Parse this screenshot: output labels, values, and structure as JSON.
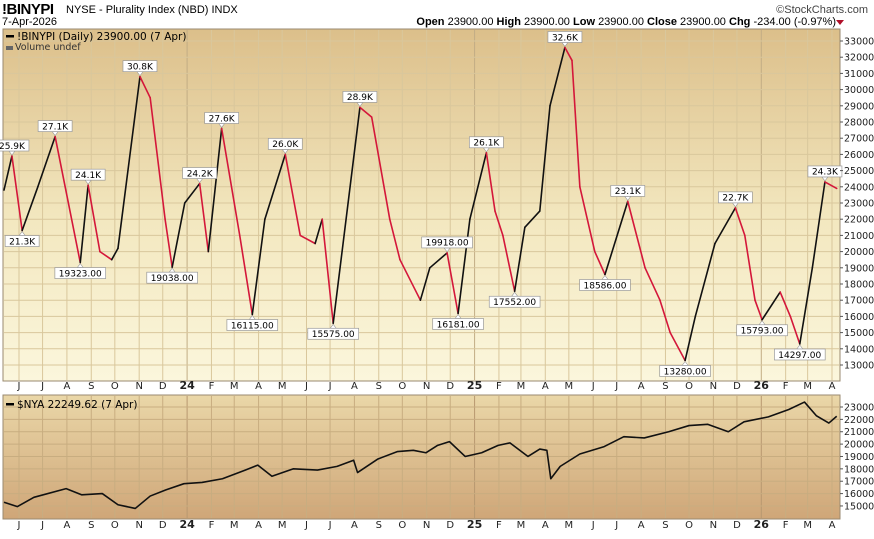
{
  "header": {
    "symbol": "!BINYPI",
    "description": "NYSE - Plurality Index (NBD)  INDX",
    "date": "7-Apr-2026",
    "credit": "©StockCharts.com",
    "open_label": "Open",
    "open": "23900.00",
    "high_label": "High",
    "high": "23900.00",
    "low_label": "Low",
    "low": "23900.00",
    "close_label": "Close",
    "close": "23900.00",
    "chg_label": "Chg",
    "chg": "-234.00 (-0.97%)",
    "chg_direction": "down"
  },
  "colors": {
    "up": "#111111",
    "down": "#d4173a",
    "panel_top": "#dcbf8a",
    "panel_bottom": "#fbf6dc",
    "grid": "#d9c79c"
  },
  "chart_data": [
    {
      "type": "line",
      "legend": "!BINYPI (Daily) 23900.00 (7 Apr)",
      "sublegend": "Volume undef",
      "ylim": [
        12500,
        33500
      ],
      "yticks": [
        13000,
        14000,
        15000,
        16000,
        17000,
        18000,
        19000,
        20000,
        21000,
        22000,
        23000,
        24000,
        25000,
        26000,
        27000,
        28000,
        29000,
        30000,
        31000,
        32000,
        33000
      ],
      "grid": true,
      "color_rule": "black when rising, red when falling",
      "points": [
        [
          "2023-05-12",
          23800
        ],
        [
          "2023-05-23",
          25900
        ],
        [
          "2023-06-05",
          21300
        ],
        [
          "2023-06-25",
          24000
        ],
        [
          "2023-07-17",
          27100
        ],
        [
          "2023-08-18",
          19323
        ],
        [
          "2023-08-28",
          24100
        ],
        [
          "2023-09-12",
          20000
        ],
        [
          "2023-09-27",
          19500
        ],
        [
          "2023-10-05",
          20200
        ],
        [
          "2023-11-02",
          30800
        ],
        [
          "2023-11-15",
          29500
        ],
        [
          "2023-12-04",
          22000
        ],
        [
          "2023-12-13",
          19038
        ],
        [
          "2023-12-29",
          23000
        ],
        [
          "2024-01-17",
          24200
        ],
        [
          "2024-01-28",
          20000
        ],
        [
          "2024-02-14",
          27600
        ],
        [
          "2024-03-08",
          21000
        ],
        [
          "2024-03-24",
          16115
        ],
        [
          "2024-04-09",
          22000
        ],
        [
          "2024-05-05",
          26000
        ],
        [
          "2024-05-24",
          21000
        ],
        [
          "2024-06-12",
          20500
        ],
        [
          "2024-06-21",
          22000
        ],
        [
          "2024-07-05",
          15575
        ],
        [
          "2024-08-08",
          28900
        ],
        [
          "2024-08-23",
          28300
        ],
        [
          "2024-09-15",
          22000
        ],
        [
          "2024-09-28",
          19500
        ],
        [
          "2024-10-24",
          17000
        ],
        [
          "2024-11-05",
          19000
        ],
        [
          "2024-11-27",
          19918
        ],
        [
          "2024-12-11",
          16181
        ],
        [
          "2024-12-26",
          22000
        ],
        [
          "2025-01-16",
          26100
        ],
        [
          "2025-01-27",
          22500
        ],
        [
          "2025-02-06",
          21000
        ],
        [
          "2025-02-21",
          17552
        ],
        [
          "2025-03-06",
          21500
        ],
        [
          "2025-03-25",
          22500
        ],
        [
          "2025-04-07",
          29000
        ],
        [
          "2025-04-26",
          32600
        ],
        [
          "2025-05-05",
          31800
        ],
        [
          "2025-05-15",
          24000
        ],
        [
          "2025-06-03",
          20000
        ],
        [
          "2025-06-16",
          18586
        ],
        [
          "2025-07-15",
          23100
        ],
        [
          "2025-08-06",
          19000
        ],
        [
          "2025-08-25",
          17000
        ],
        [
          "2025-09-07",
          15000
        ],
        [
          "2025-09-26",
          13280
        ],
        [
          "2025-10-09",
          16000
        ],
        [
          "2025-11-03",
          20500
        ],
        [
          "2025-11-29",
          22700
        ],
        [
          "2025-12-11",
          21000
        ],
        [
          "2025-12-24",
          17000
        ],
        [
          "2026-01-02",
          15793
        ],
        [
          "2026-01-25",
          17500
        ],
        [
          "2026-02-07",
          16000
        ],
        [
          "2026-02-19",
          14297
        ],
        [
          "2026-03-07",
          19000
        ],
        [
          "2026-03-23",
          24300
        ],
        [
          "2026-04-07",
          23900
        ]
      ],
      "annotations": [
        {
          "date": "2023-05-23",
          "value": 25900,
          "text": "25.9K",
          "pos": "above"
        },
        {
          "date": "2023-06-05",
          "value": 21300,
          "text": "21.3K",
          "pos": "below"
        },
        {
          "date": "2023-07-17",
          "value": 27100,
          "text": "27.1K",
          "pos": "above"
        },
        {
          "date": "2023-08-18",
          "value": 19323,
          "text": "19323.00",
          "pos": "below"
        },
        {
          "date": "2023-08-28",
          "value": 24100,
          "text": "24.1K",
          "pos": "above"
        },
        {
          "date": "2023-11-02",
          "value": 30800,
          "text": "30.8K",
          "pos": "above"
        },
        {
          "date": "2023-12-13",
          "value": 19038,
          "text": "19038.00",
          "pos": "below"
        },
        {
          "date": "2024-01-17",
          "value": 24200,
          "text": "24.2K",
          "pos": "above"
        },
        {
          "date": "2024-02-14",
          "value": 27600,
          "text": "27.6K",
          "pos": "above"
        },
        {
          "date": "2024-03-24",
          "value": 16115,
          "text": "16115.00",
          "pos": "below"
        },
        {
          "date": "2024-05-05",
          "value": 26000,
          "text": "26.0K",
          "pos": "above"
        },
        {
          "date": "2024-07-05",
          "value": 15575,
          "text": "15575.00",
          "pos": "below"
        },
        {
          "date": "2024-08-08",
          "value": 28900,
          "text": "28.9K",
          "pos": "above"
        },
        {
          "date": "2024-11-27",
          "value": 19918,
          "text": "19918.00",
          "pos": "above"
        },
        {
          "date": "2024-12-11",
          "value": 16181,
          "text": "16181.00",
          "pos": "below"
        },
        {
          "date": "2025-01-16",
          "value": 26100,
          "text": "26.1K",
          "pos": "above"
        },
        {
          "date": "2025-02-21",
          "value": 17552,
          "text": "17552.00",
          "pos": "below"
        },
        {
          "date": "2025-04-26",
          "value": 32600,
          "text": "32.6K",
          "pos": "above"
        },
        {
          "date": "2025-06-16",
          "value": 18586,
          "text": "18586.00",
          "pos": "below"
        },
        {
          "date": "2025-07-15",
          "value": 23100,
          "text": "23.1K",
          "pos": "above"
        },
        {
          "date": "2025-09-26",
          "value": 13280,
          "text": "13280.00",
          "pos": "below"
        },
        {
          "date": "2025-11-29",
          "value": 22700,
          "text": "22.7K",
          "pos": "above"
        },
        {
          "date": "2026-01-02",
          "value": 15793,
          "text": "15793.00",
          "pos": "below"
        },
        {
          "date": "2026-02-19",
          "value": 14297,
          "text": "14297.00",
          "pos": "below"
        },
        {
          "date": "2026-03-23",
          "value": 24300,
          "text": "24.3K",
          "pos": "above"
        }
      ]
    },
    {
      "type": "line",
      "legend": "$NYA 22249.62 (7 Apr)",
      "ylim": [
        14300,
        23700
      ],
      "yticks": [
        15000,
        16000,
        17000,
        18000,
        19000,
        20000,
        21000,
        22000,
        23000
      ],
      "grid": true,
      "points": [
        [
          "2023-05-12",
          15300
        ],
        [
          "2023-05-30",
          14950
        ],
        [
          "2023-06-20",
          15700
        ],
        [
          "2023-07-31",
          16400
        ],
        [
          "2023-08-20",
          15900
        ],
        [
          "2023-09-15",
          16000
        ],
        [
          "2023-10-05",
          15100
        ],
        [
          "2023-10-27",
          14800
        ],
        [
          "2023-11-15",
          15800
        ],
        [
          "2023-12-05",
          16300
        ],
        [
          "2023-12-28",
          16800
        ],
        [
          "2024-01-20",
          16900
        ],
        [
          "2024-02-15",
          17200
        ],
        [
          "2024-03-15",
          17900
        ],
        [
          "2024-03-31",
          18300
        ],
        [
          "2024-04-18",
          17400
        ],
        [
          "2024-05-15",
          18000
        ],
        [
          "2024-06-15",
          17900
        ],
        [
          "2024-07-10",
          18200
        ],
        [
          "2024-07-31",
          18700
        ],
        [
          "2024-08-05",
          17700
        ],
        [
          "2024-08-31",
          18800
        ],
        [
          "2024-09-25",
          19400
        ],
        [
          "2024-10-15",
          19500
        ],
        [
          "2024-10-31",
          19300
        ],
        [
          "2024-11-15",
          19900
        ],
        [
          "2024-11-30",
          20200
        ],
        [
          "2024-12-20",
          19000
        ],
        [
          "2025-01-10",
          19300
        ],
        [
          "2025-01-31",
          19900
        ],
        [
          "2025-02-15",
          20100
        ],
        [
          "2025-03-10",
          19000
        ],
        [
          "2025-03-25",
          19600
        ],
        [
          "2025-04-03",
          19500
        ],
        [
          "2025-04-08",
          17200
        ],
        [
          "2025-04-20",
          18200
        ],
        [
          "2025-05-15",
          19200
        ],
        [
          "2025-06-15",
          19800
        ],
        [
          "2025-07-10",
          20600
        ],
        [
          "2025-08-05",
          20500
        ],
        [
          "2025-09-05",
          21000
        ],
        [
          "2025-10-01",
          21500
        ],
        [
          "2025-10-25",
          21600
        ],
        [
          "2025-11-20",
          21000
        ],
        [
          "2025-12-10",
          21800
        ],
        [
          "2026-01-10",
          22200
        ],
        [
          "2026-02-05",
          22800
        ],
        [
          "2026-02-25",
          23400
        ],
        [
          "2026-03-12",
          22300
        ],
        [
          "2026-03-28",
          21700
        ],
        [
          "2026-04-07",
          22250
        ]
      ]
    }
  ],
  "x_axis": {
    "start_month": "2023-06",
    "labels": [
      "J",
      "J",
      "A",
      "S",
      "O",
      "N",
      "D",
      "24",
      "F",
      "M",
      "A",
      "M",
      "J",
      "J",
      "A",
      "S",
      "O",
      "N",
      "D",
      "25",
      "F",
      "M",
      "A",
      "M",
      "J",
      "J",
      "A",
      "S",
      "O",
      "N",
      "D",
      "26",
      "F",
      "M",
      "A"
    ]
  }
}
